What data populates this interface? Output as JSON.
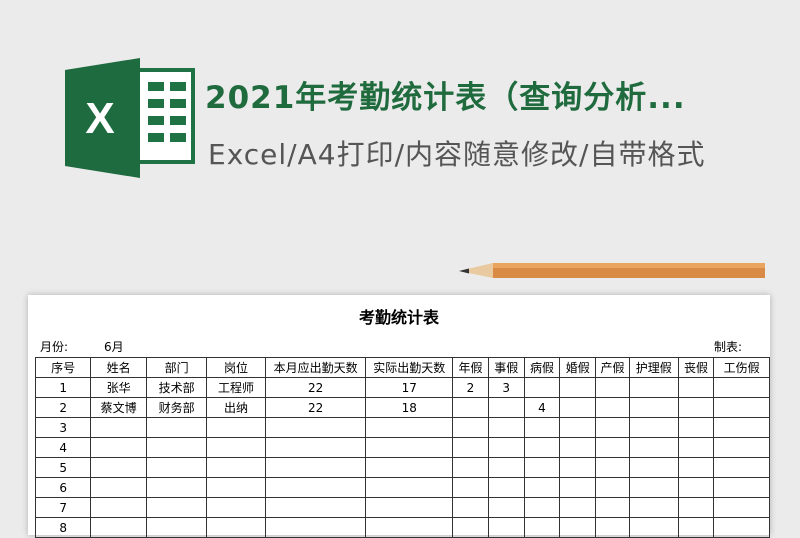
{
  "header": {
    "title": "2021年考勤统计表（查询分析...",
    "subtitle": "Excel/A4打印/内容随意修改/自带格式"
  },
  "sheet": {
    "title": "考勤统计表",
    "month_label": "月份:",
    "month": "6月",
    "maker_label": "制表:"
  },
  "table": {
    "header": [
      "序号",
      "姓名",
      "部门",
      "岗位",
      "本月应出勤天数",
      "实际出勤天数",
      "年假",
      "事假",
      "病假",
      "婚假",
      "产假",
      "护理假",
      "丧假",
      "工伤假"
    ],
    "rows": [
      [
        1,
        "张华",
        "技术部",
        "工程师",
        22,
        17,
        2,
        3,
        null,
        null,
        null,
        null,
        null,
        null
      ],
      [
        2,
        "蔡文博",
        "财务部",
        "出纳",
        22,
        18,
        null,
        null,
        4,
        null,
        null,
        null,
        null,
        null
      ],
      [
        3,
        null,
        null,
        null,
        null,
        null,
        null,
        null,
        null,
        null,
        null,
        null,
        null,
        null
      ],
      [
        4,
        null,
        null,
        null,
        null,
        null,
        null,
        null,
        null,
        null,
        null,
        null,
        null,
        null
      ],
      [
        5,
        null,
        null,
        null,
        null,
        null,
        null,
        null,
        null,
        null,
        null,
        null,
        null,
        null
      ],
      [
        6,
        null,
        null,
        null,
        null,
        null,
        null,
        null,
        null,
        null,
        null,
        null,
        null,
        null
      ],
      [
        7,
        null,
        null,
        null,
        null,
        null,
        null,
        null,
        null,
        null,
        null,
        null,
        null,
        null
      ],
      [
        8,
        null,
        null,
        null,
        null,
        null,
        null,
        null,
        null,
        null,
        null,
        null,
        null,
        null
      ]
    ]
  }
}
